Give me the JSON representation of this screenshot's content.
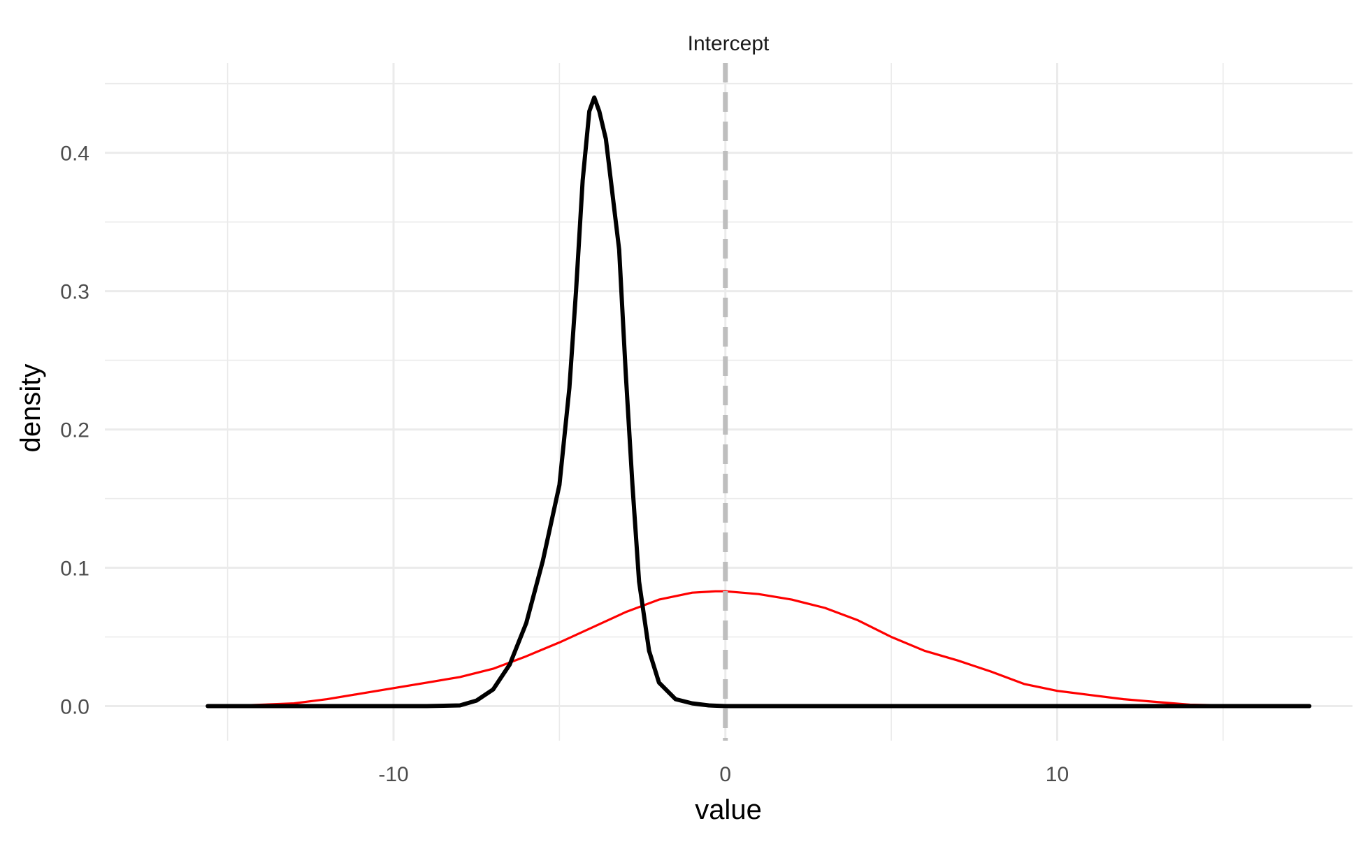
{
  "chart_data": {
    "type": "line",
    "title": "Intercept",
    "xlabel": "value",
    "ylabel": "density",
    "xlim": [
      -18.7,
      18.9
    ],
    "ylim": [
      -0.025,
      0.465
    ],
    "x_ticks": [
      -10,
      0,
      10
    ],
    "x_tick_labels": [
      "-10",
      "0",
      "10"
    ],
    "y_ticks": [
      0.0,
      0.1,
      0.2,
      0.3,
      0.4
    ],
    "y_tick_labels": [
      "0.0",
      "0.1",
      "0.2",
      "0.3",
      "0.4"
    ],
    "grid": true,
    "vline": {
      "x": 0,
      "style": "dashed",
      "color": "#bebebe"
    },
    "series": [
      {
        "color": "#ff0000",
        "points": [
          [
            -15.6,
            0.0
          ],
          [
            -14.5,
            0.0005
          ],
          [
            -13.0,
            0.002
          ],
          [
            -12.0,
            0.005
          ],
          [
            -11.0,
            0.009
          ],
          [
            -10.0,
            0.013
          ],
          [
            -9.0,
            0.017
          ],
          [
            -8.0,
            0.021
          ],
          [
            -7.0,
            0.027
          ],
          [
            -6.0,
            0.036
          ],
          [
            -5.0,
            0.046
          ],
          [
            -4.0,
            0.057
          ],
          [
            -3.0,
            0.068
          ],
          [
            -2.0,
            0.077
          ],
          [
            -1.0,
            0.082
          ],
          [
            -0.3,
            0.083
          ],
          [
            0.0,
            0.083
          ],
          [
            1.0,
            0.081
          ],
          [
            2.0,
            0.077
          ],
          [
            3.0,
            0.071
          ],
          [
            4.0,
            0.062
          ],
          [
            5.0,
            0.05
          ],
          [
            6.0,
            0.04
          ],
          [
            7.0,
            0.033
          ],
          [
            8.0,
            0.025
          ],
          [
            9.0,
            0.016
          ],
          [
            10.0,
            0.011
          ],
          [
            11.0,
            0.008
          ],
          [
            12.0,
            0.005
          ],
          [
            13.0,
            0.003
          ],
          [
            14.0,
            0.001
          ],
          [
            15.0,
            0.0005
          ],
          [
            16.0,
            0.0002
          ],
          [
            17.6,
            0.0
          ]
        ]
      },
      {
        "color": "#000000",
        "points": [
          [
            -15.6,
            0.0
          ],
          [
            -9.0,
            0.0
          ],
          [
            -8.0,
            0.0005
          ],
          [
            -7.5,
            0.004
          ],
          [
            -7.0,
            0.012
          ],
          [
            -6.5,
            0.03
          ],
          [
            -6.0,
            0.06
          ],
          [
            -5.5,
            0.105
          ],
          [
            -5.0,
            0.16
          ],
          [
            -4.7,
            0.23
          ],
          [
            -4.5,
            0.3
          ],
          [
            -4.3,
            0.38
          ],
          [
            -4.1,
            0.43
          ],
          [
            -3.95,
            0.44
          ],
          [
            -3.8,
            0.43
          ],
          [
            -3.6,
            0.41
          ],
          [
            -3.4,
            0.37
          ],
          [
            -3.2,
            0.33
          ],
          [
            -3.0,
            0.24
          ],
          [
            -2.8,
            0.16
          ],
          [
            -2.6,
            0.09
          ],
          [
            -2.3,
            0.04
          ],
          [
            -2.0,
            0.017
          ],
          [
            -1.5,
            0.005
          ],
          [
            -1.0,
            0.002
          ],
          [
            -0.5,
            0.0005
          ],
          [
            0.0,
            0.0
          ],
          [
            17.6,
            0.0
          ]
        ]
      }
    ]
  }
}
